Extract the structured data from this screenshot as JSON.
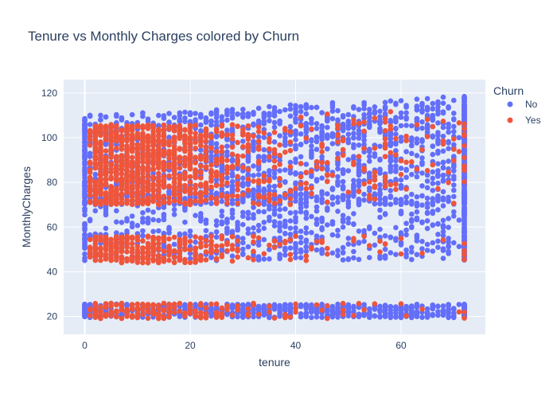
{
  "chart_data": {
    "type": "scatter",
    "title": "Tenure vs Monthly Charges colored by Churn",
    "xlabel": "tenure",
    "ylabel": "MonthlyCharges",
    "xlim": [
      -4,
      76
    ],
    "ylim": [
      12,
      126
    ],
    "xticks": [
      0,
      20,
      40,
      60
    ],
    "yticks": [
      20,
      40,
      60,
      80,
      100,
      120
    ],
    "grid": true,
    "background": "#e5ecf6",
    "legend": {
      "title": "Churn",
      "placement": "top-right"
    },
    "series": [
      {
        "name": "No",
        "color": "#636efa",
        "x_range": [
          0,
          72
        ],
        "y_range": [
          18.3,
          118.8
        ]
      },
      {
        "name": "Yes",
        "color": "#ef553b",
        "x_range": [
          1,
          72
        ],
        "y_range": [
          18.9,
          118.4
        ]
      }
    ]
  }
}
